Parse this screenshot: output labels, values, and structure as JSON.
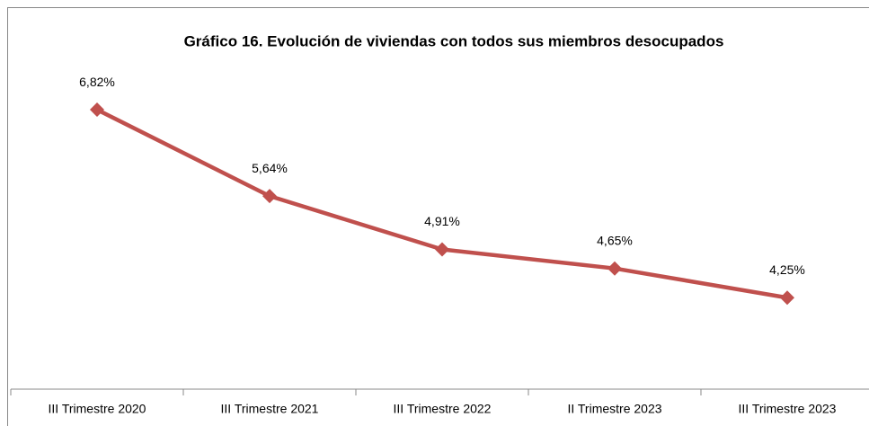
{
  "chart_data": {
    "type": "line",
    "title": "Gráfico 16. Evolución de viviendas con todos sus miembros desocupados",
    "categories": [
      "III Trimestre 2020",
      "III Trimestre 2021",
      "III Trimestre 2022",
      "II Trimestre 2023",
      "III Trimestre 2023"
    ],
    "series": [
      {
        "color": "#c0504d",
        "values": [
          6.82,
          5.64,
          4.91,
          4.65,
          4.25
        ],
        "value_labels": [
          "6,82%",
          "5,64%",
          "4,91%",
          "4,65%",
          "4,25%"
        ]
      }
    ],
    "ylim": [
      3,
      8
    ]
  }
}
